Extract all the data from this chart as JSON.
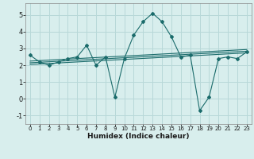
{
  "xlabel": "Humidex (Indice chaleur)",
  "background_color": "#d8eeed",
  "grid_color": "#b8d8d8",
  "line_color": "#1a6b6b",
  "xlim": [
    -0.5,
    23.5
  ],
  "ylim": [
    -1.5,
    5.7
  ],
  "yticks": [
    -1,
    0,
    1,
    2,
    3,
    4,
    5
  ],
  "xticks": [
    0,
    1,
    2,
    3,
    4,
    5,
    6,
    7,
    8,
    9,
    10,
    11,
    12,
    13,
    14,
    15,
    16,
    17,
    18,
    19,
    20,
    21,
    22,
    23
  ],
  "x": [
    0,
    1,
    2,
    3,
    4,
    5,
    6,
    7,
    8,
    9,
    10,
    11,
    12,
    13,
    14,
    15,
    16,
    17,
    18,
    19,
    20,
    21,
    22,
    23
  ],
  "y_main": [
    2.6,
    2.2,
    2.0,
    2.2,
    2.4,
    2.5,
    3.2,
    2.0,
    2.5,
    0.1,
    2.4,
    3.8,
    4.6,
    5.1,
    4.6,
    3.7,
    2.5,
    2.6,
    -0.7,
    0.1,
    2.4,
    2.5,
    2.4,
    2.8
  ],
  "y_trend1": [
    2.25,
    2.28,
    2.31,
    2.34,
    2.37,
    2.4,
    2.43,
    2.46,
    2.49,
    2.52,
    2.55,
    2.58,
    2.61,
    2.64,
    2.67,
    2.7,
    2.73,
    2.76,
    2.79,
    2.82,
    2.85,
    2.88,
    2.91,
    2.94
  ],
  "y_trend2": [
    2.15,
    2.18,
    2.21,
    2.24,
    2.27,
    2.3,
    2.33,
    2.36,
    2.39,
    2.42,
    2.45,
    2.48,
    2.51,
    2.54,
    2.57,
    2.6,
    2.63,
    2.66,
    2.69,
    2.72,
    2.75,
    2.78,
    2.81,
    2.84
  ],
  "y_trend3": [
    2.05,
    2.08,
    2.11,
    2.14,
    2.17,
    2.2,
    2.23,
    2.26,
    2.29,
    2.32,
    2.35,
    2.38,
    2.41,
    2.44,
    2.47,
    2.5,
    2.53,
    2.56,
    2.59,
    2.62,
    2.65,
    2.68,
    2.71,
    2.74
  ]
}
